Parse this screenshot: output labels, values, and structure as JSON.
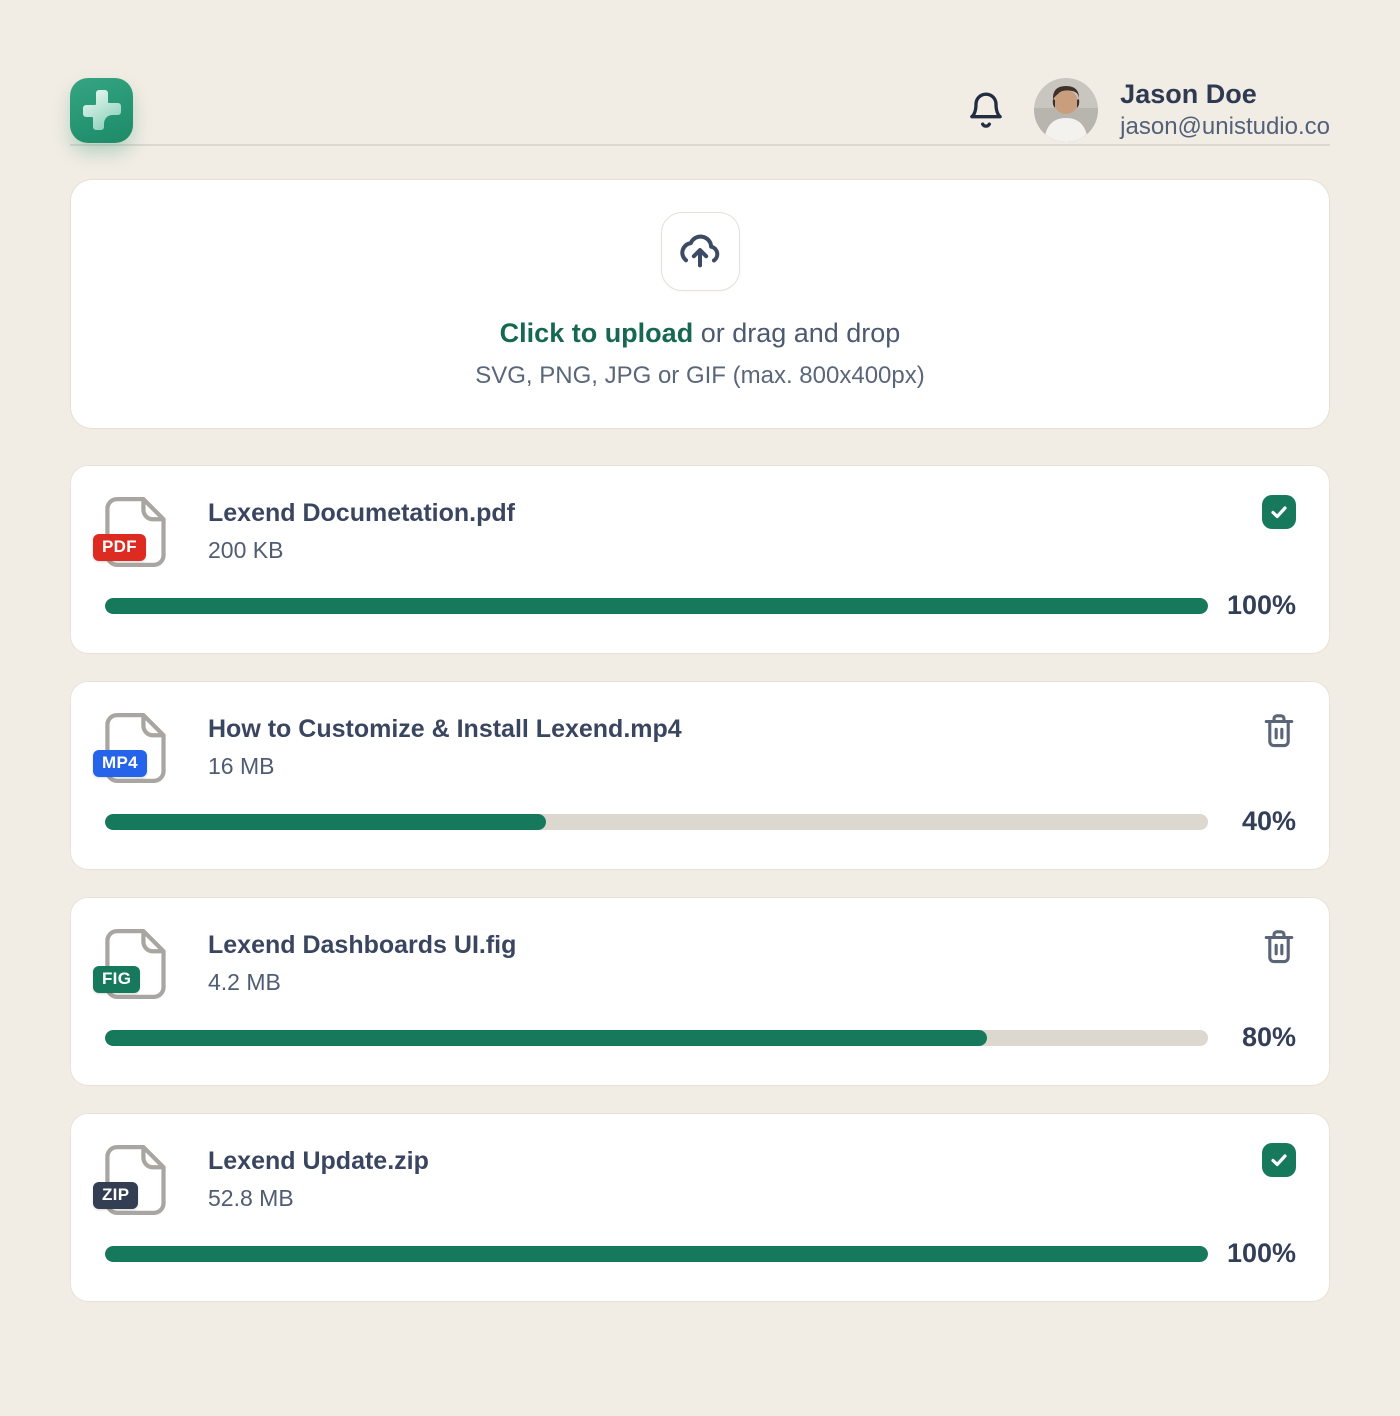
{
  "header": {
    "logo_icon": "plus-logo",
    "bell_icon": "notification-bell",
    "user": {
      "name": "Jason Doe",
      "email": "jason@unistudio.co"
    }
  },
  "upload": {
    "icon": "cloud-upload",
    "cta": "Click to upload",
    "cta_suffix": " or drag and drop",
    "hint": "SVG, PNG, JPG or GIF (max. 800x400px)"
  },
  "colors": {
    "background": "#f2ede4",
    "accent_green": "#17795c",
    "cta_green": "#166852",
    "track_gray": "#dcd8cf",
    "text_dark": "#3a4660"
  },
  "files": [
    {
      "name": "Lexend Documetation.pdf",
      "size": "200 KB",
      "type": "PDF",
      "badge_color": "#dd2b22",
      "progress": 100,
      "progress_label": "100%",
      "status": "complete"
    },
    {
      "name": "How to Customize & Install Lexend.mp4",
      "size": "16 MB",
      "type": "MP4",
      "badge_color": "#2563eb",
      "progress": 40,
      "progress_label": "40%",
      "status": "uploading"
    },
    {
      "name": "Lexend Dashboards UI.fig",
      "size": "4.2 MB",
      "type": "FIG",
      "badge_color": "#17795c",
      "progress": 80,
      "progress_label": "80%",
      "status": "uploading"
    },
    {
      "name": "Lexend Update.zip",
      "size": "52.8 MB",
      "type": "ZIP",
      "badge_color": "#333e52",
      "progress": 100,
      "progress_label": "100%",
      "status": "complete"
    }
  ]
}
